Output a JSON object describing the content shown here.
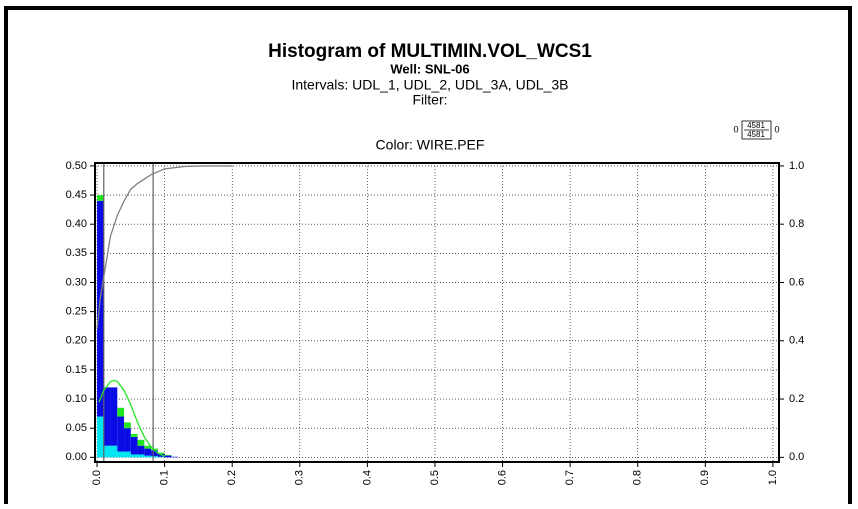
{
  "chart_data": {
    "type": "histogram",
    "title": "Histogram of MULTIMIN.VOL_WCS1",
    "subtitle": "Well: SNL-06",
    "intervals": "Intervals: UDL_1, UDL_2, UDL_3A, UDL_3B",
    "filter": "Filter:",
    "color_label": "Color: WIRE.PEF",
    "color_scale": {
      "left": "0",
      "top": "4581",
      "bottom": "4581",
      "right": "0"
    },
    "bins": [
      0,
      0.01,
      0.02,
      0.03,
      0.04,
      0.05,
      0.06,
      0.07,
      0.08,
      0.09,
      0.1,
      0.11,
      0.12
    ],
    "series": [
      {
        "color": "#00e5f0",
        "values": [
          0.07,
          0.02,
          0.02,
          0.01,
          0.01,
          0.005,
          0.005,
          0.003,
          0.002,
          0.001,
          0,
          0
        ]
      },
      {
        "color": "#0a0ce6",
        "values": [
          0.37,
          0.1,
          0.1,
          0.06,
          0.04,
          0.03,
          0.015,
          0.012,
          0.01,
          0.005,
          0.003,
          0.001
        ]
      },
      {
        "color": "#22e622",
        "values": [
          0.01,
          0,
          0,
          0.015,
          0.01,
          0.005,
          0.01,
          0.005,
          0.003,
          0.002,
          0.001,
          0
        ]
      }
    ],
    "curve": {
      "color": "#22e622",
      "x": [
        0.003,
        0.01,
        0.02,
        0.025,
        0.03,
        0.04,
        0.05,
        0.06,
        0.07,
        0.08,
        0.09,
        0.1
      ],
      "values": [
        0.095,
        0.115,
        0.13,
        0.132,
        0.13,
        0.115,
        0.09,
        0.06,
        0.035,
        0.018,
        0.007,
        0.002
      ]
    },
    "cumulative": {
      "color": "#808080",
      "axis": "y2",
      "x": [
        0,
        0.005,
        0.01,
        0.02,
        0.03,
        0.04,
        0.05,
        0.06,
        0.08,
        0.1,
        0.13,
        0.16,
        0.2
      ],
      "values": [
        0.44,
        0.55,
        0.62,
        0.76,
        0.83,
        0.88,
        0.92,
        0.94,
        0.97,
        0.99,
        0.998,
        1.0,
        1.0
      ]
    },
    "reference_lines": {
      "color": "#606060",
      "x": [
        0.01,
        0.083
      ]
    },
    "xlim": [
      -0.003,
      1.009
    ],
    "xticks": [
      {
        "value": 0,
        "label": "0.0"
      },
      0.1,
      0.2,
      0.3,
      0.4,
      0.5,
      0.6,
      0.7,
      0.8,
      0.9,
      {
        "value": 1,
        "label": "1.0"
      }
    ],
    "ylim": [
      -0.008,
      0.505
    ],
    "yticks": [
      {
        "value": 0,
        "label": "0.00"
      },
      0.05,
      {
        "value": 0.1,
        "label": "0.10"
      },
      0.15,
      {
        "value": 0.2,
        "label": "0.20"
      },
      0.25,
      {
        "value": 0.3,
        "label": "0.30"
      },
      0.35,
      {
        "value": 0.4,
        "label": "0.40"
      },
      0.45,
      {
        "value": 0.5,
        "label": "0.50"
      }
    ],
    "y2lim": [
      -0.016,
      1.01
    ],
    "y2ticks": [
      {
        "value": 0,
        "label": "0.0"
      },
      0.2,
      0.4,
      0.6,
      0.8,
      {
        "value": 1,
        "label": "1.0"
      }
    ],
    "grid": true
  }
}
